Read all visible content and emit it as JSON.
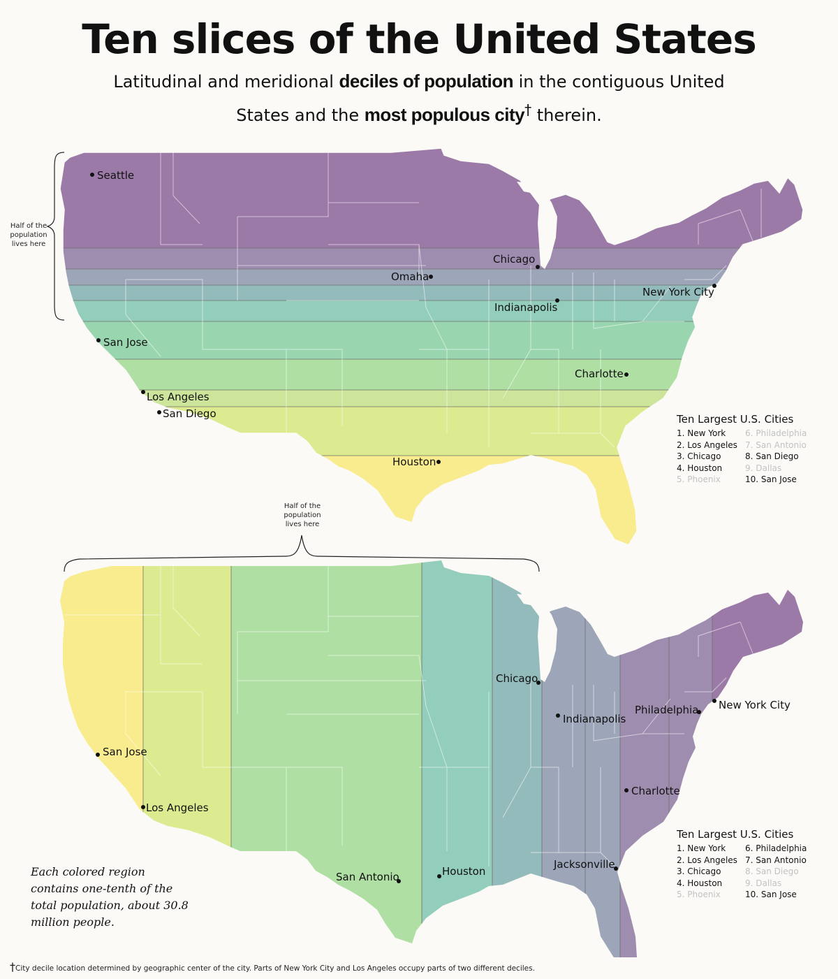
{
  "title": "Ten slices of the United States",
  "subtitle": {
    "part1": "Latitudinal and meridional ",
    "bold1": "deciles of population",
    "part2": " in the contiguous United States and the ",
    "bold2": "most populous city",
    "dagger": "†",
    "part3": " therein."
  },
  "colors": {
    "decile_palette": [
      "#9c7aa8",
      "#9f8db0",
      "#9da5b8",
      "#94bbbb",
      "#93cdbb",
      "#99d6b0",
      "#b0dfa4",
      "#cde59a",
      "#dceb90",
      "#f9ec8e"
    ],
    "divider": "#6e6e6e",
    "state_border": "#ffffff"
  },
  "maps": [
    {
      "orientation": "latitudinal",
      "brace_label": "Half of the population lives here",
      "cities": [
        {
          "name": "Seattle"
        },
        {
          "name": "Chicago"
        },
        {
          "name": "Omaha"
        },
        {
          "name": "New York City"
        },
        {
          "name": "Indianapolis"
        },
        {
          "name": "San Jose"
        },
        {
          "name": "Charlotte"
        },
        {
          "name": "Los Angeles"
        },
        {
          "name": "San Diego"
        },
        {
          "name": "Houston"
        }
      ],
      "legend": {
        "title": "Ten Largest U.S. Cities",
        "items": [
          {
            "label": "1. New York",
            "highlighted": true
          },
          {
            "label": "6. Philadelphia",
            "highlighted": false
          },
          {
            "label": "2. Los Angeles",
            "highlighted": true
          },
          {
            "label": "7. San Antonio",
            "highlighted": false
          },
          {
            "label": "3. Chicago",
            "highlighted": true
          },
          {
            "label": "8. San Diego",
            "highlighted": true
          },
          {
            "label": "4. Houston",
            "highlighted": true
          },
          {
            "label": "9. Dallas",
            "highlighted": false
          },
          {
            "label": "5. Phoenix",
            "highlighted": false
          },
          {
            "label": "10. San Jose",
            "highlighted": true
          }
        ]
      }
    },
    {
      "orientation": "meridional",
      "brace_label": "Half of the population lives here",
      "cities": [
        {
          "name": "Chicago"
        },
        {
          "name": "New York City"
        },
        {
          "name": "Philadelphia"
        },
        {
          "name": "Indianapolis"
        },
        {
          "name": "San Jose"
        },
        {
          "name": "Charlotte"
        },
        {
          "name": "Los Angeles"
        },
        {
          "name": "Jacksonville"
        },
        {
          "name": "San Antonio"
        },
        {
          "name": "Houston"
        }
      ],
      "legend": {
        "title": "Ten Largest U.S. Cities",
        "items": [
          {
            "label": "1. New York",
            "highlighted": true
          },
          {
            "label": "6. Philadelphia",
            "highlighted": true
          },
          {
            "label": "2. Los Angeles",
            "highlighted": true
          },
          {
            "label": "7. San Antonio",
            "highlighted": true
          },
          {
            "label": "3. Chicago",
            "highlighted": true
          },
          {
            "label": "8. San Diego",
            "highlighted": false
          },
          {
            "label": "4. Houston",
            "highlighted": true
          },
          {
            "label": "9. Dallas",
            "highlighted": false
          },
          {
            "label": "5. Phoenix",
            "highlighted": false
          },
          {
            "label": "10. San Jose",
            "highlighted": true
          }
        ]
      }
    }
  ],
  "note": "Each colored region contains one-tenth of the total population, about 30.8 million people.",
  "footnote": {
    "dagger": "†",
    "text": "City decile location determined by geographic center of the city. Parts of New York City and Los Angeles occupy parts of two different deciles."
  }
}
